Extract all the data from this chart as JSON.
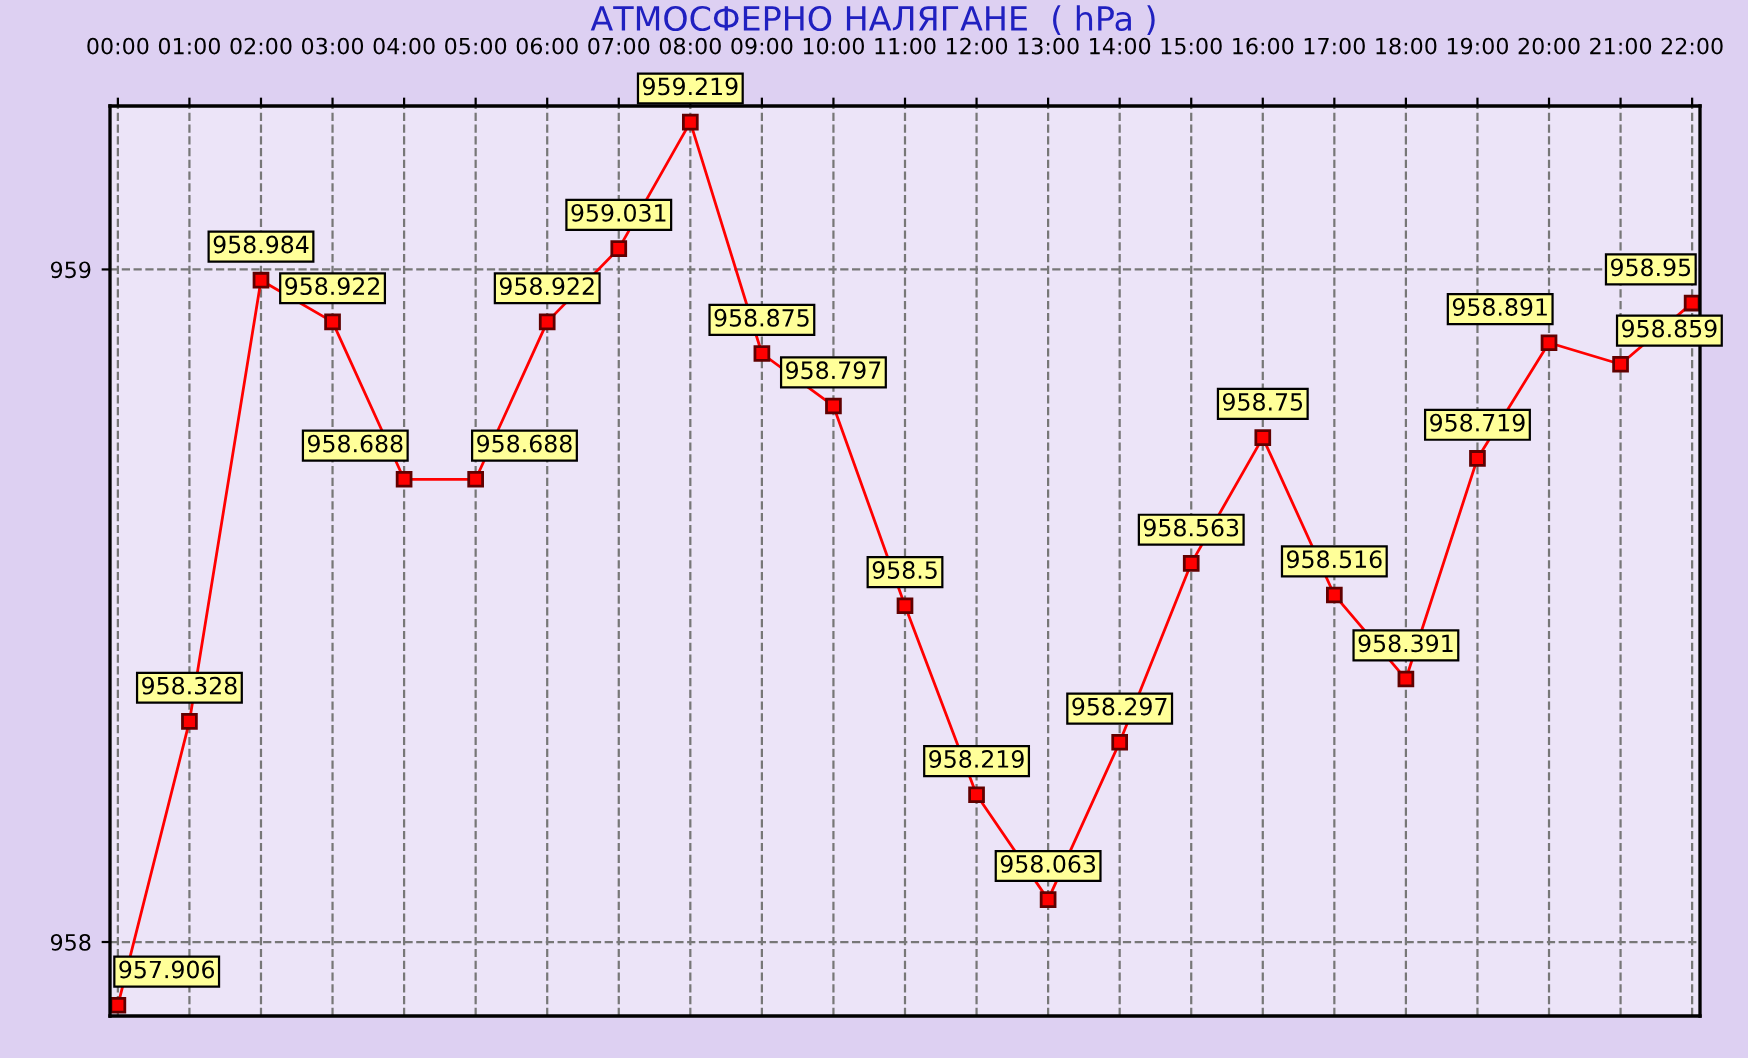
{
  "chart_data": {
    "type": "line",
    "title": "АТМОСФЕРНО НАЛЯГАНЕ  ( hPa )",
    "categories": [
      "00:00",
      "01:00",
      "02:00",
      "03:00",
      "04:00",
      "05:00",
      "06:00",
      "07:00",
      "08:00",
      "09:00",
      "10:00",
      "11:00",
      "12:00",
      "13:00",
      "14:00",
      "15:00",
      "16:00",
      "17:00",
      "18:00",
      "19:00",
      "20:00",
      "21:00",
      "22:00"
    ],
    "series": [
      {
        "color": "#ff0000",
        "values": [
          957.906,
          958.328,
          958.984,
          958.922,
          958.688,
          958.688,
          958.922,
          959.031,
          959.219,
          958.875,
          958.797,
          958.5,
          958.219,
          958.063,
          958.297,
          958.563,
          958.75,
          958.516,
          958.391,
          958.719,
          958.891,
          958.859,
          958.95
        ]
      }
    ],
    "ylim": [
      957.89,
      959.243
    ],
    "yticks": [
      958,
      959
    ],
    "grid": true,
    "marker": "square",
    "line_style": "solid",
    "data_labels": true,
    "legend": false
  }
}
